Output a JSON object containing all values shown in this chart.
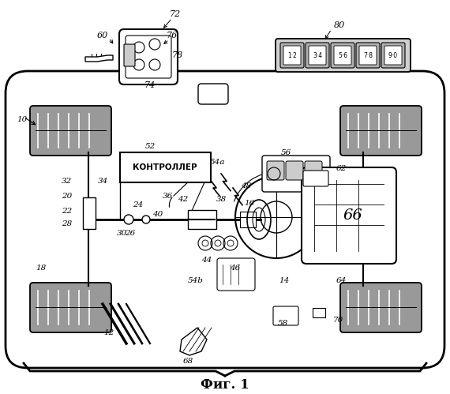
{
  "title": "Фиг. 1",
  "background_color": "#ffffff",
  "controller_text": "КОНТРОЛЛЕР",
  "keypad_buttons": [
    "1·2",
    "3·4",
    "5·6",
    "7·8",
    "9·0"
  ]
}
